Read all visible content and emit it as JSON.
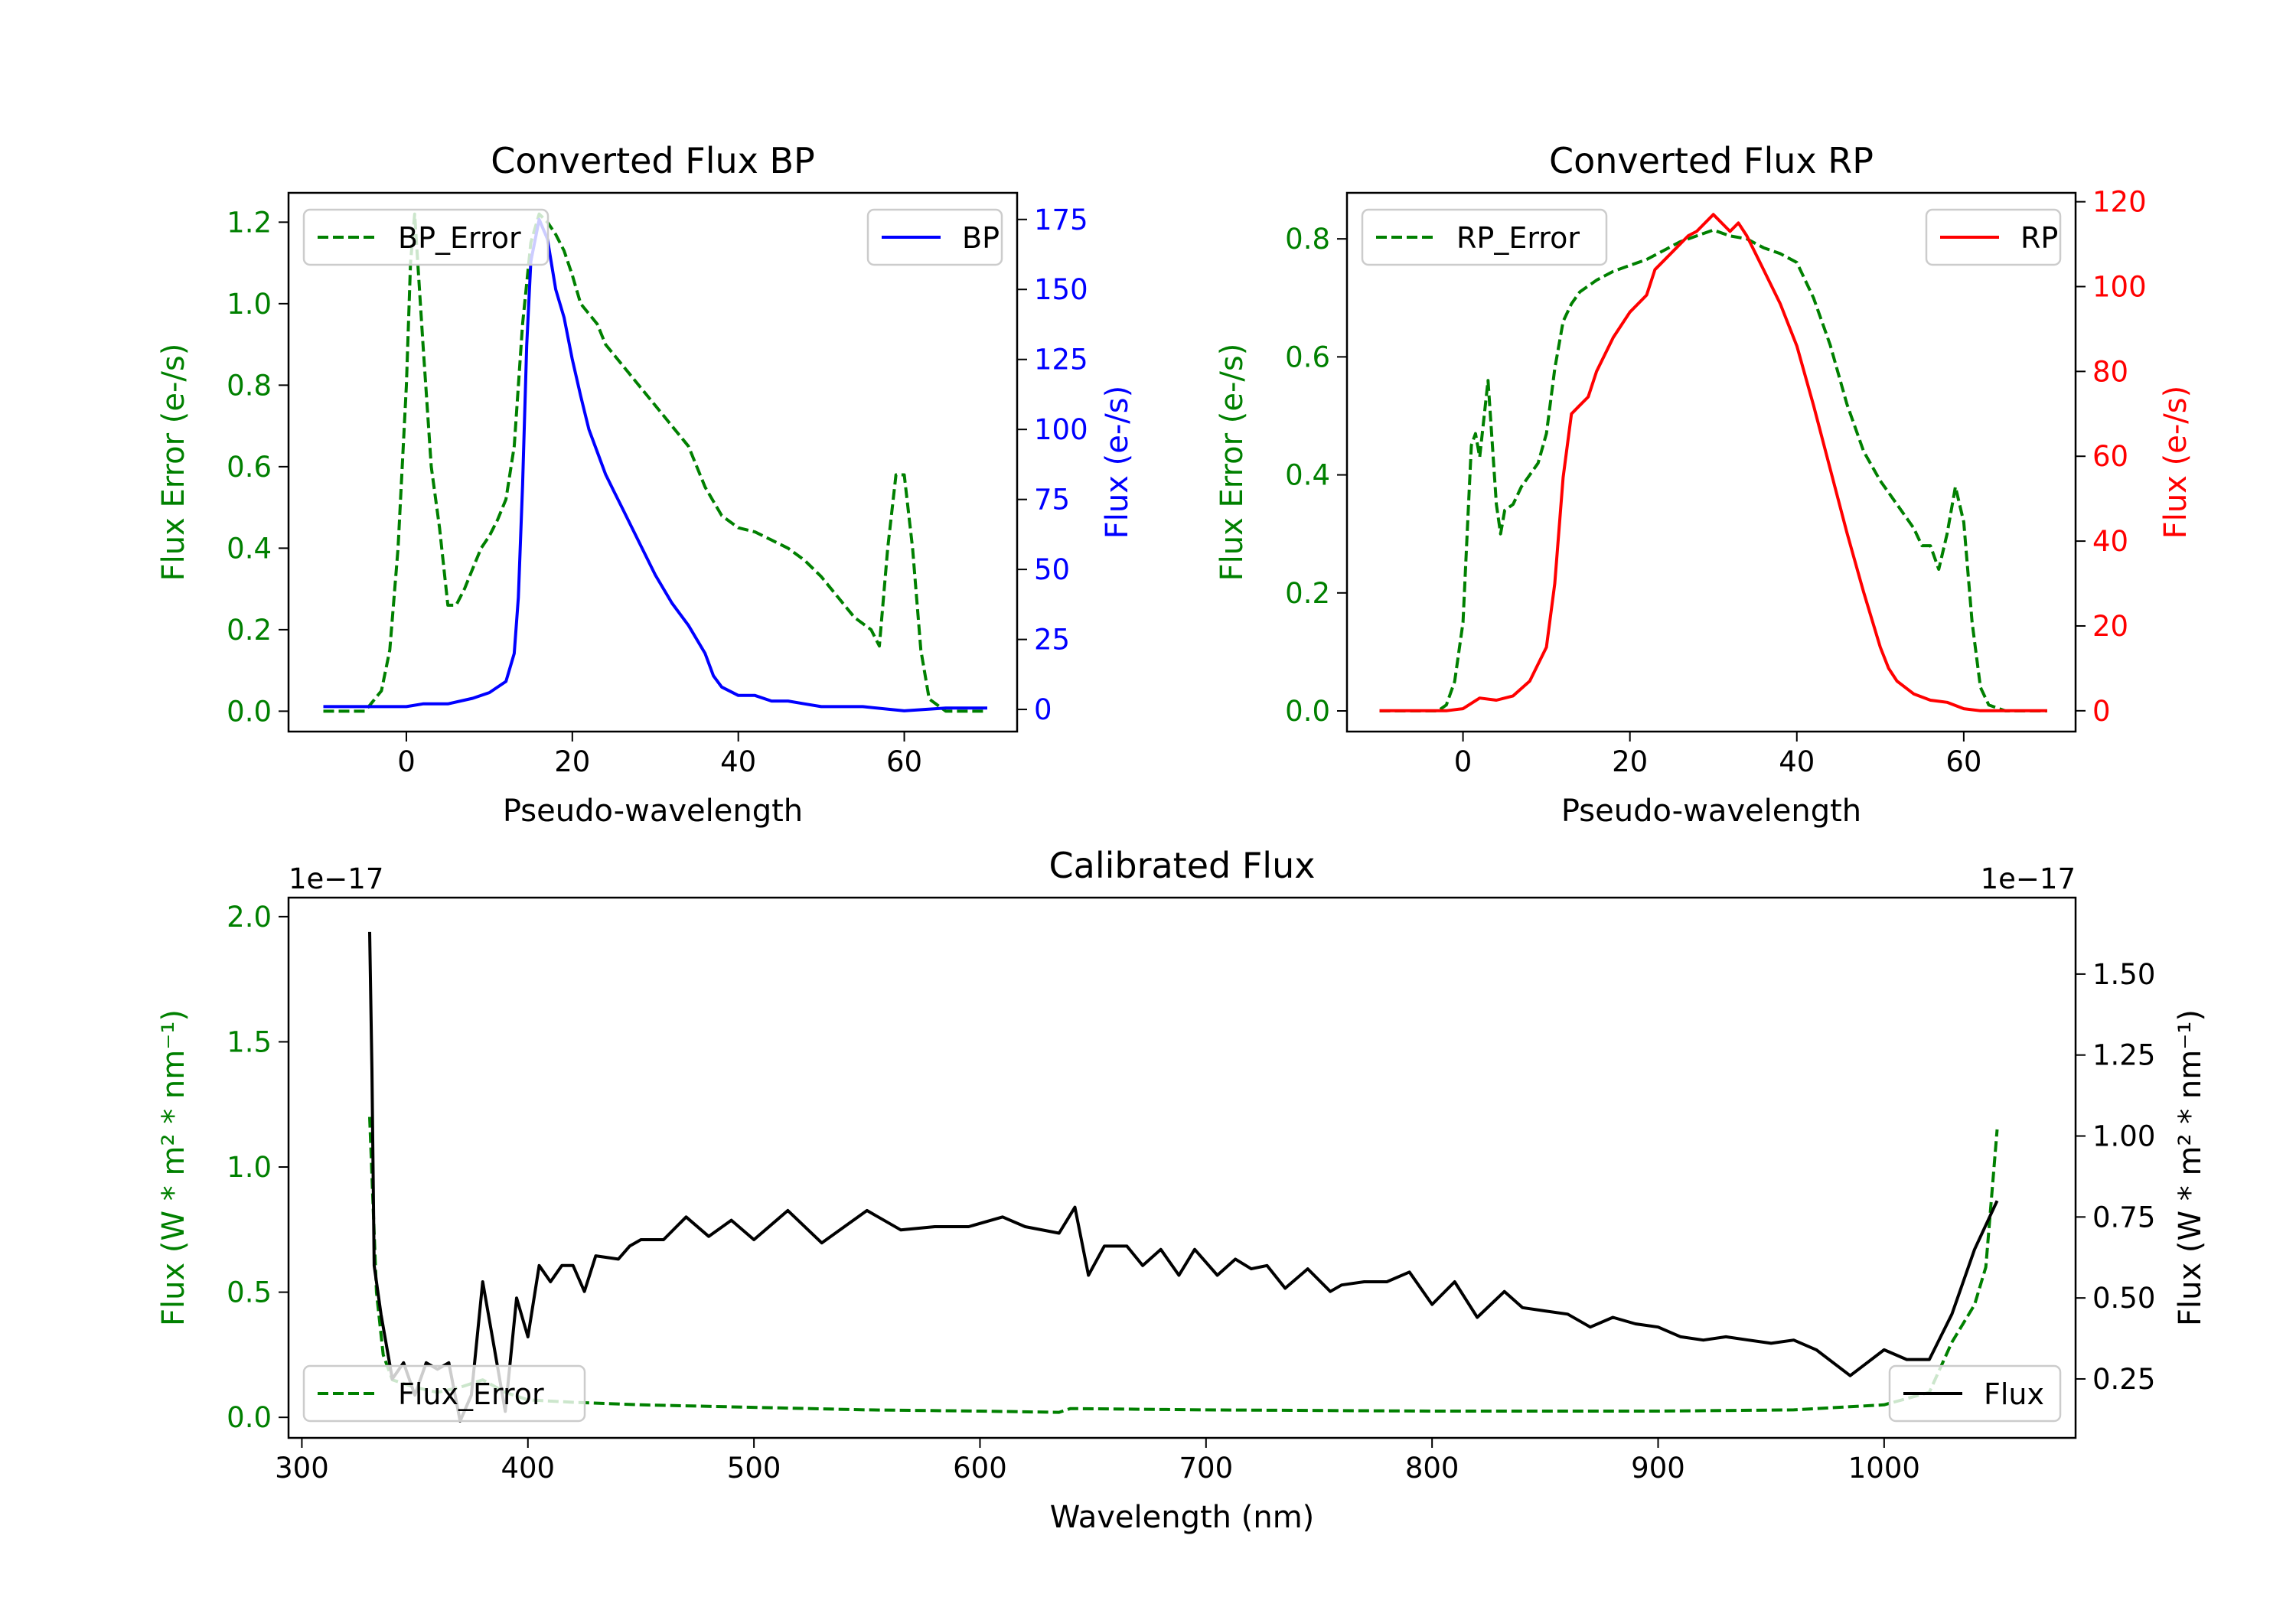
{
  "chart_data": [
    {
      "id": "bp",
      "type": "line",
      "title": "Converted Flux BP",
      "xlabel": "Pseudo-wavelength",
      "ylabel_left": "Flux Error (e-/s)",
      "ylabel_right": "Flux (e-/s)",
      "ylabel_left_color": "#008000",
      "ylabel_right_color": "#0000ff",
      "xlim": [
        -14.2,
        73.6
      ],
      "ylim_left": [
        -0.05,
        1.272
      ],
      "ylim_right": [
        -7.9,
        184.5
      ],
      "xticks": [
        0,
        20,
        40,
        60
      ],
      "yticks_left": [
        0.0,
        0.2,
        0.4,
        0.6,
        0.8,
        1.0,
        1.2
      ],
      "yticks_left_labels": [
        "0.0",
        "0.2",
        "0.4",
        "0.6",
        "0.8",
        "1.0",
        "1.2"
      ],
      "yticks_right": [
        0,
        25,
        50,
        75,
        100,
        125,
        150,
        175
      ],
      "offset_left": "",
      "offset_right": "",
      "legend_left": {
        "placement": "upper-left"
      },
      "legend_right": {
        "placement": "upper-right"
      },
      "series": [
        {
          "name": "BP_Error",
          "axis": "left",
          "color": "#008000",
          "style": "dashed",
          "x": [
            -10,
            -5,
            -3,
            -2,
            -1,
            0,
            0.5,
            1,
            2,
            3,
            4,
            5,
            6,
            7,
            8,
            9,
            10,
            11,
            12,
            13,
            14,
            15,
            16,
            17,
            18,
            19,
            20,
            21,
            23,
            24,
            26,
            28,
            30,
            32,
            34,
            36,
            38,
            40,
            42,
            44,
            46,
            48,
            50,
            52,
            54,
            56,
            57,
            58,
            59,
            60,
            61,
            62,
            63,
            65,
            70
          ],
          "y": [
            0,
            0,
            0.05,
            0.15,
            0.4,
            0.8,
            1.1,
            1.22,
            0.9,
            0.6,
            0.45,
            0.26,
            0.26,
            0.3,
            0.35,
            0.4,
            0.43,
            0.47,
            0.52,
            0.65,
            0.95,
            1.15,
            1.22,
            1.2,
            1.17,
            1.13,
            1.07,
            1.0,
            0.95,
            0.9,
            0.85,
            0.8,
            0.75,
            0.7,
            0.65,
            0.55,
            0.48,
            0.45,
            0.44,
            0.42,
            0.4,
            0.37,
            0.33,
            0.28,
            0.23,
            0.2,
            0.16,
            0.4,
            0.58,
            0.58,
            0.4,
            0.15,
            0.03,
            0,
            0
          ]
        },
        {
          "name": "BP",
          "axis": "right",
          "color": "#0000ff",
          "style": "solid",
          "x": [
            -10,
            0,
            2,
            5,
            8,
            10,
            12,
            13,
            13.5,
            14,
            14.5,
            15,
            16,
            17,
            18,
            19,
            20,
            21,
            22,
            23,
            24,
            25,
            26,
            28,
            30,
            32,
            34,
            36,
            37,
            38,
            40,
            42,
            44,
            46,
            48,
            50,
            55,
            60,
            65,
            70
          ],
          "y": [
            1,
            1,
            2,
            2,
            4,
            6,
            10,
            20,
            40,
            80,
            130,
            160,
            175,
            168,
            150,
            140,
            125,
            112,
            100,
            92,
            84,
            78,
            72,
            60,
            48,
            38,
            30,
            20,
            12,
            8,
            5,
            5,
            3,
            3,
            2,
            1,
            1,
            -0.5,
            0.5,
            0.5
          ]
        }
      ]
    },
    {
      "id": "rp",
      "type": "line",
      "title": "Converted Flux RP",
      "xlabel": "Pseudo-wavelength",
      "ylabel_left": "Flux Error (e-/s)",
      "ylabel_right": "Flux (e-/s)",
      "ylabel_left_color": "#008000",
      "ylabel_right_color": "#ff0000",
      "xlim": [
        -13.9,
        73.4
      ],
      "ylim_left": [
        -0.035,
        0.878
      ],
      "ylim_right": [
        -4.9,
        122.1
      ],
      "xticks": [
        0,
        20,
        40,
        60
      ],
      "yticks_left": [
        0.0,
        0.2,
        0.4,
        0.6,
        0.8
      ],
      "yticks_left_labels": [
        "0.0",
        "0.2",
        "0.4",
        "0.6",
        "0.8"
      ],
      "yticks_right": [
        0,
        20,
        40,
        60,
        80,
        100,
        120
      ],
      "offset_left": "",
      "offset_right": "",
      "legend_left": {
        "placement": "upper-left"
      },
      "legend_right": {
        "placement": "upper-right"
      },
      "series": [
        {
          "name": "RP_Error",
          "axis": "left",
          "color": "#008000",
          "style": "dashed",
          "x": [
            -10,
            -3,
            -2,
            -1,
            0,
            0.5,
            1,
            1.5,
            2,
            3,
            4,
            4.5,
            5,
            6,
            7,
            8,
            9,
            10,
            11,
            12,
            13,
            14,
            16,
            18,
            20,
            22,
            24,
            26,
            28,
            30,
            32,
            34,
            36,
            38,
            40,
            42,
            44,
            46,
            48,
            50,
            52,
            54,
            55,
            56,
            57,
            58,
            59,
            60,
            61,
            62,
            63,
            65,
            70
          ],
          "y": [
            0,
            0,
            0.01,
            0.05,
            0.15,
            0.3,
            0.45,
            0.47,
            0.43,
            0.56,
            0.35,
            0.3,
            0.34,
            0.35,
            0.38,
            0.4,
            0.42,
            0.47,
            0.58,
            0.66,
            0.69,
            0.71,
            0.73,
            0.745,
            0.755,
            0.765,
            0.78,
            0.795,
            0.805,
            0.815,
            0.805,
            0.8,
            0.785,
            0.775,
            0.76,
            0.7,
            0.62,
            0.52,
            0.44,
            0.39,
            0.35,
            0.31,
            0.28,
            0.28,
            0.24,
            0.3,
            0.38,
            0.32,
            0.15,
            0.04,
            0.01,
            0,
            0
          ]
        },
        {
          "name": "RP",
          "axis": "right",
          "color": "#ff0000",
          "style": "solid",
          "x": [
            -10,
            -2,
            0,
            2,
            4,
            6,
            8,
            10,
            11,
            12,
            13,
            14,
            15,
            16,
            18,
            20,
            22,
            23,
            25,
            27,
            28,
            30,
            31,
            32,
            33,
            34,
            35,
            36,
            38,
            40,
            42,
            44,
            46,
            48,
            50,
            51,
            52,
            54,
            56,
            58,
            60,
            62,
            70
          ],
          "y": [
            0,
            0,
            0.5,
            3,
            2.5,
            3.5,
            7,
            15,
            30,
            55,
            70,
            72,
            74,
            80,
            88,
            94,
            98,
            104,
            108,
            112,
            113,
            117,
            115,
            113,
            115,
            112,
            108,
            104,
            96,
            86,
            72,
            57,
            42,
            28,
            15,
            10,
            7,
            4,
            2.5,
            2,
            0.5,
            0,
            0
          ]
        }
      ]
    },
    {
      "id": "cal",
      "type": "line",
      "title": "Calibrated Flux",
      "xlabel": "Wavelength (nm)",
      "ylabel_left": "Flux (W * m² * nm⁻¹)",
      "ylabel_right": "Flux (W * m² * nm⁻¹)",
      "ylabel_left_color": "#008000",
      "ylabel_right_color": "#000000",
      "xlim": [
        294.1,
        1084.7
      ],
      "ylim_left": [
        -0.082,
        2.076
      ],
      "ylim_right": [
        0.068,
        1.736
      ],
      "xticks": [
        300,
        400,
        500,
        600,
        700,
        800,
        900,
        1000
      ],
      "yticks_left": [
        0.0,
        0.5,
        1.0,
        1.5,
        2.0
      ],
      "yticks_left_labels": [
        "0.0",
        "0.5",
        "1.0",
        "1.5",
        "2.0"
      ],
      "yticks_right": [
        0.25,
        0.5,
        0.75,
        1.0,
        1.25,
        1.5
      ],
      "yticks_right_labels": [
        "0.25",
        "0.50",
        "0.75",
        "1.00",
        "1.25",
        "1.50"
      ],
      "offset_left": "1e−17",
      "offset_right": "1e−17",
      "legend_left": {
        "placement": "lower-left"
      },
      "legend_right": {
        "placement": "lower-right"
      },
      "series": [
        {
          "name": "Flux_Error",
          "axis": "left",
          "color": "#008000",
          "style": "dashed",
          "x": [
            330,
            333,
            336,
            340,
            350,
            360,
            370,
            380,
            390,
            400,
            420,
            450,
            500,
            550,
            600,
            635,
            640,
            700,
            800,
            900,
            960,
            1000,
            1020,
            1030,
            1040,
            1045,
            1050
          ],
          "y": [
            1.2,
            0.5,
            0.25,
            0.15,
            0.12,
            0.1,
            0.12,
            0.15,
            0.1,
            0.07,
            0.06,
            0.05,
            0.04,
            0.03,
            0.025,
            0.02,
            0.035,
            0.03,
            0.025,
            0.025,
            0.03,
            0.05,
            0.1,
            0.3,
            0.45,
            0.6,
            1.15
          ]
        },
        {
          "name": "Flux",
          "axis": "right",
          "color": "#000000",
          "style": "solid",
          "x": [
            330,
            331,
            332,
            335,
            340,
            345,
            350,
            355,
            360,
            365,
            370,
            375,
            380,
            385,
            390,
            395,
            400,
            405,
            410,
            415,
            420,
            425,
            430,
            440,
            445,
            450,
            460,
            470,
            480,
            490,
            500,
            515,
            530,
            550,
            565,
            580,
            595,
            610,
            620,
            635,
            642,
            648,
            655,
            665,
            672,
            680,
            688,
            695,
            705,
            713,
            720,
            727,
            735,
            745,
            755,
            760,
            770,
            780,
            790,
            800,
            810,
            820,
            832,
            840,
            850,
            860,
            870,
            880,
            890,
            900,
            910,
            920,
            930,
            940,
            950,
            960,
            970,
            985,
            1000,
            1010,
            1020,
            1030,
            1040,
            1050
          ],
          "y": [
            1.63,
            1.2,
            0.6,
            0.45,
            0.25,
            0.3,
            0.2,
            0.3,
            0.28,
            0.3,
            0.12,
            0.2,
            0.55,
            0.35,
            0.15,
            0.5,
            0.38,
            0.6,
            0.55,
            0.6,
            0.6,
            0.52,
            0.63,
            0.62,
            0.66,
            0.68,
            0.68,
            0.75,
            0.69,
            0.74,
            0.68,
            0.77,
            0.67,
            0.77,
            0.71,
            0.72,
            0.72,
            0.75,
            0.72,
            0.7,
            0.78,
            0.57,
            0.66,
            0.66,
            0.6,
            0.65,
            0.57,
            0.65,
            0.57,
            0.62,
            0.59,
            0.6,
            0.53,
            0.59,
            0.52,
            0.54,
            0.55,
            0.55,
            0.58,
            0.48,
            0.55,
            0.44,
            0.52,
            0.47,
            0.46,
            0.45,
            0.41,
            0.44,
            0.42,
            0.41,
            0.38,
            0.37,
            0.38,
            0.37,
            0.36,
            0.37,
            0.34,
            0.26,
            0.34,
            0.31,
            0.31,
            0.45,
            0.65,
            0.8
          ]
        }
      ]
    }
  ]
}
